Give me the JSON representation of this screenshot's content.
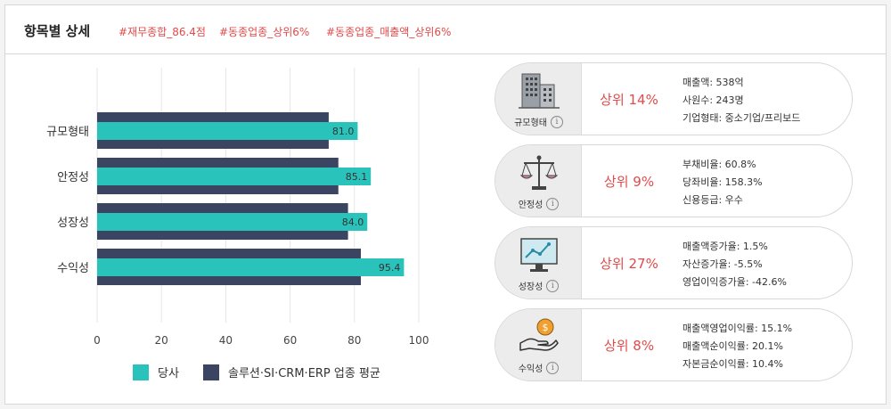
{
  "header": {
    "title": "항목별 상세",
    "tags": [
      "#재무종합_86.4점",
      "#동종업종_상위6%",
      "#동종업종_매출액_상위6%"
    ]
  },
  "colors": {
    "company": "#29c3bb",
    "average": "#3b4460",
    "accent": "#e04b4b"
  },
  "chart_data": {
    "type": "bar",
    "orientation": "horizontal",
    "categories": [
      "규모형태",
      "안정성",
      "성장성",
      "수익성"
    ],
    "series": [
      {
        "name": "당사",
        "values": [
          81.0,
          85.1,
          84.0,
          95.4
        ]
      },
      {
        "name": "솔루션·SI·CRM·ERP 업종 평균",
        "values": [
          72,
          75,
          78,
          82
        ]
      }
    ],
    "data_labels": [
      "81.0",
      "85.1",
      "84.0",
      "95.4"
    ],
    "xlim": [
      0,
      100
    ],
    "xticks": [
      0,
      20,
      40,
      60,
      80,
      100
    ],
    "legend": "bottom",
    "grid": true
  },
  "cards": [
    {
      "name": "규모형태",
      "icon": "building-icon",
      "rank": "상위 14%",
      "details": [
        "매출액: 538억",
        "사원수: 243명",
        "기업형태: 중소기업/프리보드"
      ]
    },
    {
      "name": "안정성",
      "icon": "scale-icon",
      "rank": "상위 9%",
      "details": [
        "부채비율: 60.8%",
        "당좌비율: 158.3%",
        "신용등급: 우수"
      ]
    },
    {
      "name": "성장성",
      "icon": "monitor-chart-icon",
      "rank": "상위 27%",
      "details": [
        "매출액증가율: 1.5%",
        "자산증가율: -5.5%",
        "영업이익증가율: -42.6%"
      ]
    },
    {
      "name": "수익성",
      "icon": "hand-coin-icon",
      "rank": "상위 8%",
      "details": [
        "매출액영업이익률: 15.1%",
        "매출액순이익률: 20.1%",
        "자본금순이익률: 10.4%"
      ]
    }
  ]
}
